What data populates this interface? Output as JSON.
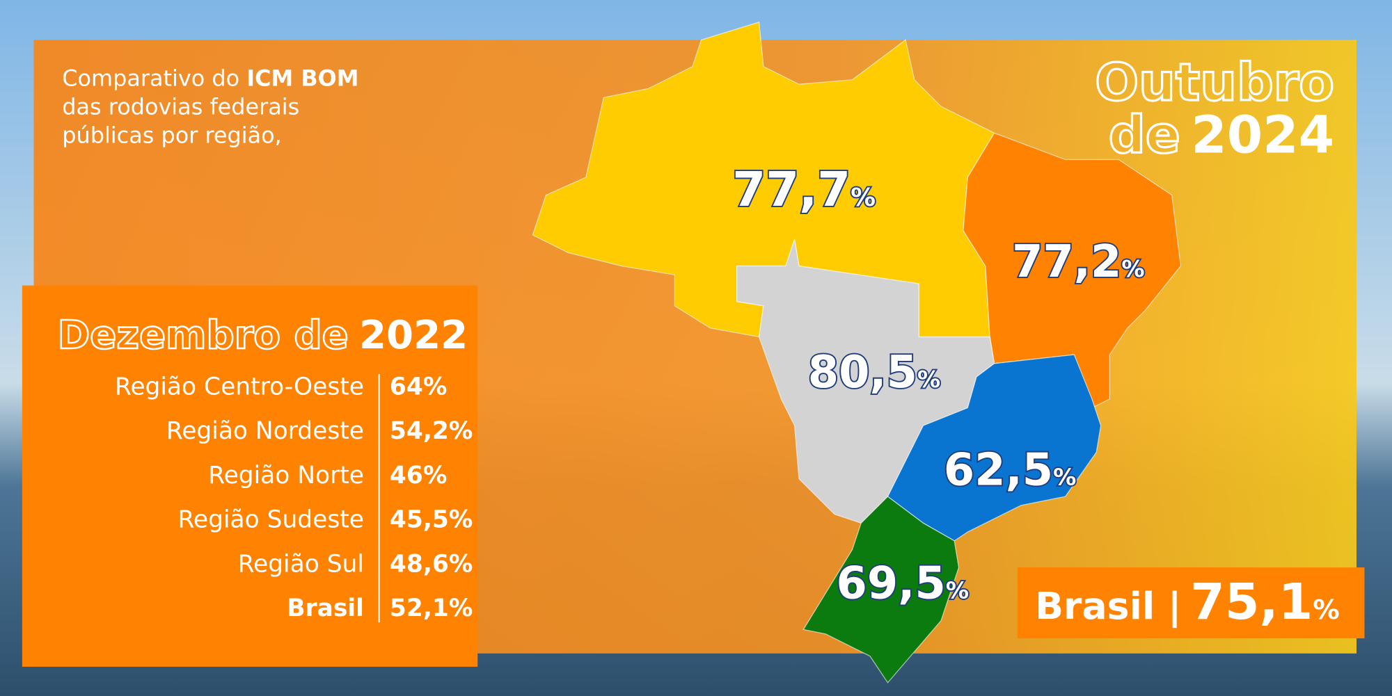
{
  "intro": {
    "part1": "Comparativo do ",
    "bold": "ICM BOM",
    "line2": "das rodovias federais",
    "line3": "públicas por região,"
  },
  "title": {
    "month": "Outubro",
    "de": "de",
    "year": "2024"
  },
  "map": {
    "regions": [
      {
        "value": "77,7",
        "unit": "%"
      },
      {
        "value": "77,2",
        "unit": "%"
      },
      {
        "value": "80,5",
        "unit": "%"
      },
      {
        "value": "62,5",
        "unit": "%"
      },
      {
        "value": "69,5",
        "unit": "%"
      }
    ]
  },
  "brasil_box": {
    "label": "Brasil |",
    "value": "75,1",
    "unit": "%"
  },
  "table": {
    "title_prefix": "Dezembro de",
    "title_year": "2022",
    "rows": [
      [
        "Região Centro-Oeste",
        "64%"
      ],
      [
        "Região Nordeste",
        "54,2%"
      ],
      [
        "Região Norte",
        "46%"
      ],
      [
        "Região Sudeste",
        "45,5%"
      ],
      [
        "Região Sul",
        "48,6%"
      ],
      [
        "Brasil",
        "52,1%"
      ]
    ]
  }
}
